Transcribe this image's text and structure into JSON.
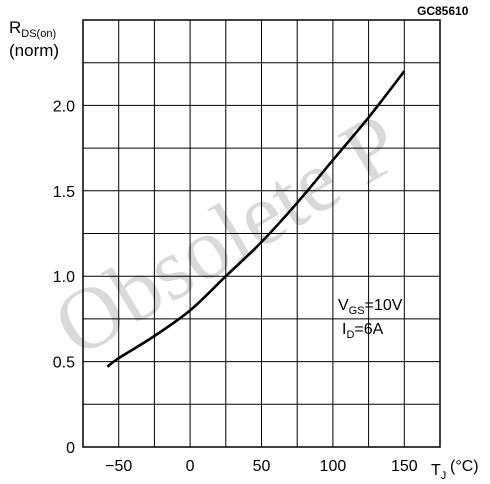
{
  "figure_code": "GC85610",
  "watermark_text": "Obsolete P",
  "ylabel": {
    "main": "R",
    "sub": "DS(on)",
    "unit": "(norm)"
  },
  "xlabel": {
    "main": "T",
    "sub": "J",
    "unit": "(°C)"
  },
  "annotation": {
    "line1_main": "V",
    "line1_sub": "GS",
    "line1_value": "=10V",
    "line2_main": "I",
    "line2_sub": "D",
    "line2_value": "=6A"
  },
  "chart_data": {
    "type": "line",
    "title": "",
    "xlabel": "T_J (°C)",
    "ylabel": "R_DS(on) (norm)",
    "xlim": [
      -75,
      175
    ],
    "ylim": [
      0,
      2.5
    ],
    "grid": true,
    "x_ticks": [
      -50,
      0,
      50,
      100,
      150
    ],
    "y_ticks": [
      0,
      0.5,
      1.0,
      1.5,
      2.0
    ],
    "x_tick_labels": [
      "−50",
      "0",
      "50",
      "100",
      "150"
    ],
    "y_tick_labels": [
      "0",
      "0.5",
      "1.0",
      "1.5",
      "2.0"
    ],
    "series": [
      {
        "x": [
          -58,
          -50,
          -25,
          0,
          25,
          50,
          75,
          100,
          125,
          150
        ],
        "y": [
          0.47,
          0.52,
          0.65,
          0.8,
          1.0,
          1.2,
          1.43,
          1.68,
          1.93,
          2.2
        ]
      }
    ],
    "line_color": "#000000"
  }
}
